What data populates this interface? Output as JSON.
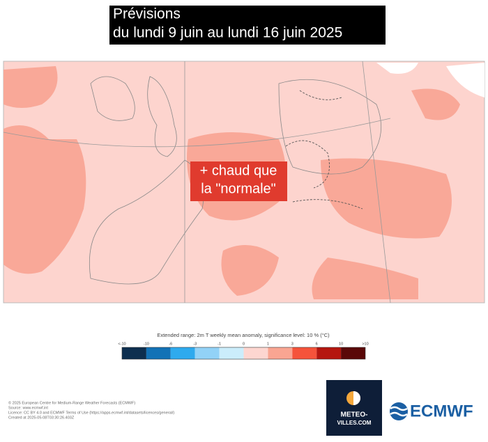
{
  "header": {
    "title_lines": [
      "Prévisions",
      "du lundi 9 juin au lundi 16 juin 2025"
    ]
  },
  "map": {
    "overlay_lines": [
      "+ chaud que",
      "la \"normale\""
    ]
  },
  "legend": {
    "title": "Extended range: 2m T weekly mean anomaly, significance level: 10 % (°C)",
    "labels": [
      "<-10",
      "-10",
      "-6",
      "-3",
      "-1",
      "0",
      "1",
      "3",
      "6",
      "10",
      ">10"
    ],
    "colors": [
      "#0d2f4f",
      "#1272b6",
      "#2eaaee",
      "#92d2f7",
      "#cbedfb",
      "#fdd6d0",
      "#f9a592",
      "#f5533b",
      "#b5160f",
      "#5a0808"
    ]
  },
  "footer": {
    "lines": [
      "© 2025 European Centre for Medium-Range Weather Forecasts (ECMWF)",
      "Source: www.ecmwf.int",
      "Licence: CC BY 4.0 and ECMWF Terms of Use (https://apps.ecmwf.int/datasets/licences/general/)",
      "Created at 2025-05-08T03:30:26.403Z"
    ]
  },
  "logos": {
    "meteo_lines": [
      "METEO-",
      "VILLES.COM"
    ],
    "ecmwf": "ECMWF"
  }
}
